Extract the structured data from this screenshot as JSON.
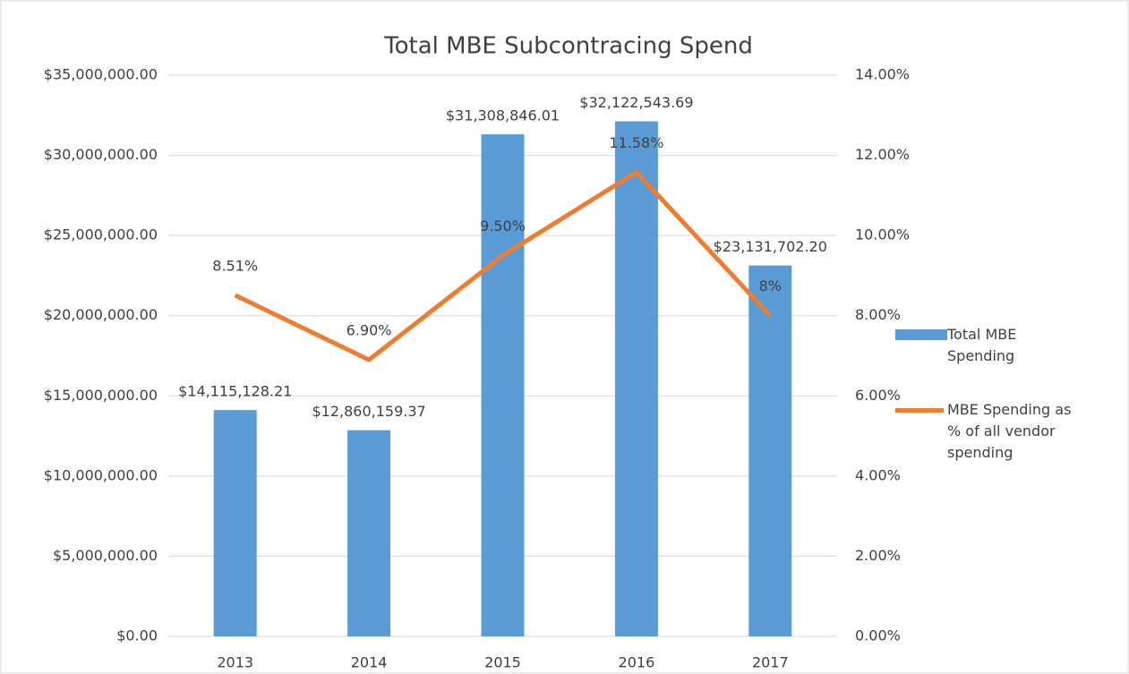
{
  "chart_data": {
    "type": "bar-line",
    "title": "Total MBE Subcontracing Spend",
    "categories": [
      "2013",
      "2014",
      "2015",
      "2016",
      "2017"
    ],
    "series": [
      {
        "name": "Total MBE Spending",
        "type": "bar",
        "color": "#5b9bd5",
        "axis": "y",
        "values": [
          14115128.21,
          12860159.37,
          31308846.01,
          32122543.69,
          23131702.2
        ],
        "value_labels": [
          "$14,115,128.21",
          "$12,860,159.37",
          "$31,308,846.01",
          "$32,122,543.69",
          "$23,131,702.20"
        ]
      },
      {
        "name": "MBE Spending as % of all vendor spending",
        "type": "line",
        "color": "#ed7d31",
        "axis": "y2",
        "values": [
          8.51,
          6.9,
          9.5,
          11.58,
          8
        ],
        "value_labels": [
          "8.51%",
          "6.90%",
          "9.50%",
          "11.58%",
          "8%"
        ]
      }
    ],
    "ylim": [
      0,
      35000000
    ],
    "yticks": [
      {
        "value": 0,
        "label": "$0.00"
      },
      {
        "value": 5000000,
        "label": "$5,000,000.00"
      },
      {
        "value": 10000000,
        "label": "$10,000,000.00"
      },
      {
        "value": 15000000,
        "label": "$15,000,000.00"
      },
      {
        "value": 20000000,
        "label": "$20,000,000.00"
      },
      {
        "value": 25000000,
        "label": "$25,000,000.00"
      },
      {
        "value": 30000000,
        "label": "$30,000,000.00"
      },
      {
        "value": 35000000,
        "label": "$35,000,000.00"
      }
    ],
    "y2lim": [
      0,
      14
    ],
    "y2ticks": [
      {
        "value": 0,
        "label": "0.00%"
      },
      {
        "value": 2,
        "label": "2.00%"
      },
      {
        "value": 4,
        "label": "4.00%"
      },
      {
        "value": 6,
        "label": "6.00%"
      },
      {
        "value": 8,
        "label": "8.00%"
      },
      {
        "value": 10,
        "label": "10.00%"
      },
      {
        "value": 12,
        "label": "12.00%"
      },
      {
        "value": 14,
        "label": "14.00%"
      }
    ],
    "grid": true,
    "legend": "right"
  }
}
